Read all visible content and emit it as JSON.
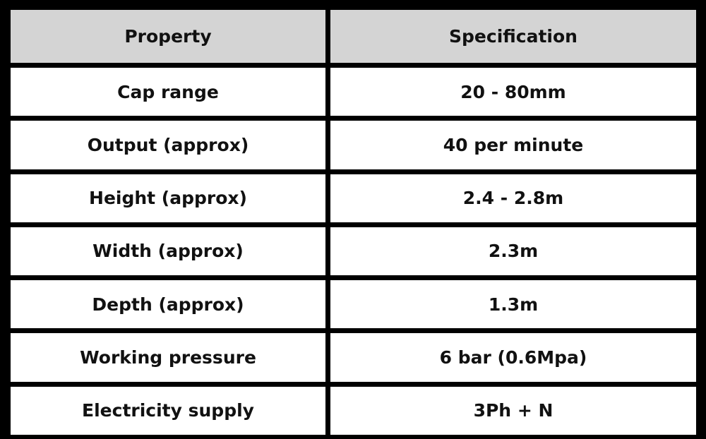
{
  "table": {
    "header": [
      "Property",
      "Specification"
    ],
    "rows": [
      [
        "Cap range",
        "20 - 80mm"
      ],
      [
        "Output (approx)",
        "40 per minute"
      ],
      [
        "Height (approx)",
        "2.4 - 2.8m"
      ],
      [
        "Width (approx)",
        "2.3m"
      ],
      [
        "Depth (approx)",
        "1.3m"
      ],
      [
        "Working pressure",
        "6 bar (0.6Mpa)"
      ],
      [
        "Electricity supply",
        "3Ph + N"
      ]
    ]
  }
}
